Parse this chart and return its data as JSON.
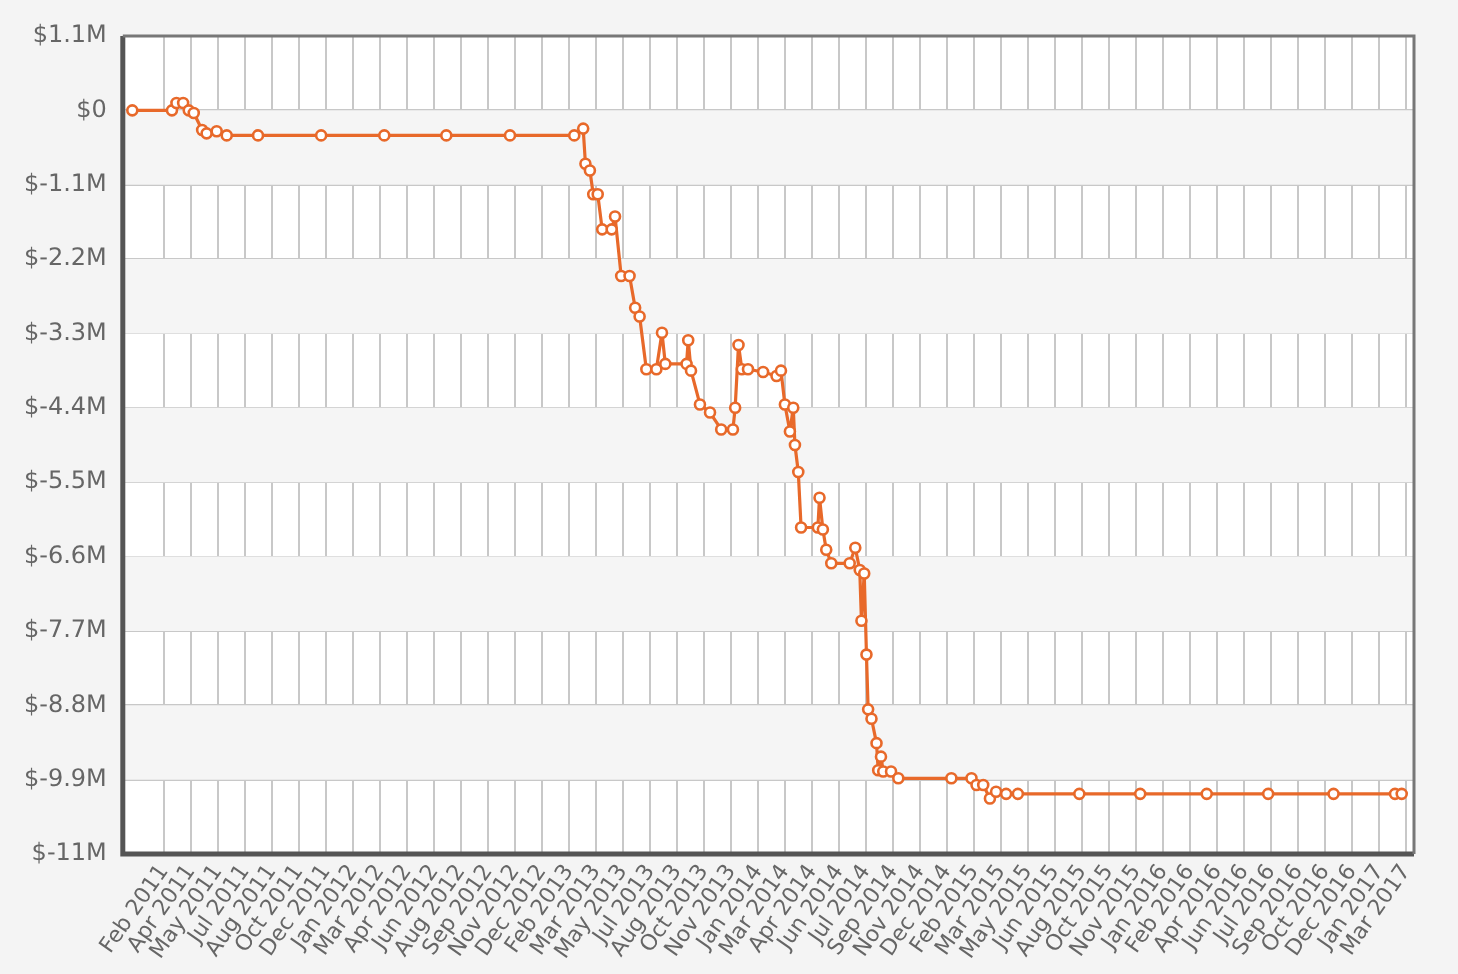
{
  "chart_data": {
    "type": "line",
    "x": [
      "2010-12-22",
      "2011-03-03",
      "2011-03-11",
      "2011-03-23",
      "2011-04-02",
      "2011-04-11",
      "2011-04-26",
      "2011-05-04",
      "2011-05-22",
      "2011-06-09",
      "2011-08-04",
      "2011-11-25",
      "2012-03-17",
      "2012-07-06",
      "2012-10-28",
      "2013-02-20",
      "2013-03-08",
      "2013-03-12",
      "2013-03-20",
      "2013-03-26",
      "2013-04-03",
      "2013-04-11",
      "2013-04-28",
      "2013-05-04",
      "2013-05-15",
      "2013-05-30",
      "2013-06-09",
      "2013-06-17",
      "2013-06-29",
      "2013-07-17",
      "2013-07-27",
      "2013-08-02",
      "2013-09-09",
      "2013-09-12",
      "2013-09-17",
      "2013-10-03",
      "2013-10-21",
      "2013-11-10",
      "2013-12-01",
      "2013-12-05",
      "2013-12-11",
      "2013-12-17",
      "2013-12-28",
      "2014-01-24",
      "2014-02-17",
      "2014-02-25",
      "2014-03-04",
      "2014-03-13",
      "2014-03-19",
      "2014-03-22",
      "2014-03-28",
      "2014-04-02",
      "2014-05-02",
      "2014-05-05",
      "2014-05-11",
      "2014-05-17",
      "2014-05-26",
      "2014-06-28",
      "2014-07-08",
      "2014-07-16",
      "2014-07-19",
      "2014-07-24",
      "2014-07-28",
      "2014-07-31",
      "2014-08-06",
      "2014-08-15",
      "2014-08-18",
      "2014-08-23",
      "2014-08-27",
      "2014-09-10",
      "2014-09-23",
      "2014-12-27",
      "2015-02-01",
      "2015-02-10",
      "2015-02-22",
      "2015-03-06",
      "2015-03-17",
      "2015-04-04",
      "2015-04-25",
      "2015-08-13",
      "2015-11-30",
      "2016-03-28",
      "2016-07-16",
      "2016-11-10",
      "2017-02-28",
      "2017-03-12"
    ],
    "series": [
      {
        "color": "#e8692a",
        "values": [
          0,
          0,
          110000,
          110000,
          0,
          -40000,
          -290000,
          -340000,
          -310000,
          -370000,
          -370000,
          -370000,
          -370000,
          -370000,
          -370000,
          -370000,
          -270000,
          -790000,
          -890000,
          -1240000,
          -1240000,
          -1760000,
          -1760000,
          -1570000,
          -2450000,
          -2450000,
          -2920000,
          -3050000,
          -3830000,
          -3830000,
          -3290000,
          -3750000,
          -3750000,
          -3400000,
          -3850000,
          -4350000,
          -4470000,
          -4720000,
          -4720000,
          -4400000,
          -3470000,
          -3830000,
          -3830000,
          -3870000,
          -3930000,
          -3850000,
          -4350000,
          -4750000,
          -4400000,
          -4950000,
          -5350000,
          -6170000,
          -6170000,
          -5730000,
          -6200000,
          -6500000,
          -6700000,
          -6700000,
          -6470000,
          -6800000,
          -7550000,
          -6850000,
          -8050000,
          -8860000,
          -9000000,
          -9360000,
          -9760000,
          -9560000,
          -9780000,
          -9780000,
          -9880000,
          -9880000,
          -9880000,
          -9980000,
          -9980000,
          -10180000,
          -10080000,
          -10110000,
          -10110000,
          -10110000,
          -10110000,
          -10110000,
          -10110000,
          -10110000,
          -10110000,
          -10110000
        ]
      }
    ],
    "xlim": [
      "2010-12-05",
      "2017-04-03"
    ],
    "xticks": [
      {
        "value": "2011-02-17",
        "label": "Feb 2011"
      },
      {
        "value": "2011-04-06",
        "label": "Apr 2011"
      },
      {
        "value": "2011-05-24",
        "label": "May 2011"
      },
      {
        "value": "2011-07-12",
        "label": "Jul 2011"
      },
      {
        "value": "2011-08-29",
        "label": "Aug 2011"
      },
      {
        "value": "2011-10-16",
        "label": "Oct 2011"
      },
      {
        "value": "2011-12-04",
        "label": "Dec 2011"
      },
      {
        "value": "2012-01-21",
        "label": "Jan 2012"
      },
      {
        "value": "2012-03-09",
        "label": "Mar 2012"
      },
      {
        "value": "2012-04-27",
        "label": "Apr 2012"
      },
      {
        "value": "2012-06-14",
        "label": "Jun 2012"
      },
      {
        "value": "2012-08-01",
        "label": "Aug 2012"
      },
      {
        "value": "2012-09-19",
        "label": "Sep 2012"
      },
      {
        "value": "2012-11-06",
        "label": "Nov 2012"
      },
      {
        "value": "2012-12-24",
        "label": "Dec 2012"
      },
      {
        "value": "2013-02-11",
        "label": "Feb 2013"
      },
      {
        "value": "2013-03-31",
        "label": "Mar 2013"
      },
      {
        "value": "2013-05-18",
        "label": "May 2013"
      },
      {
        "value": "2013-07-06",
        "label": "Jul 2013"
      },
      {
        "value": "2013-08-23",
        "label": "Aug 2013"
      },
      {
        "value": "2013-10-10",
        "label": "Oct 2013"
      },
      {
        "value": "2013-11-28",
        "label": "Nov 2013"
      },
      {
        "value": "2014-01-15",
        "label": "Jan 2014"
      },
      {
        "value": "2014-03-04",
        "label": "Mar 2014"
      },
      {
        "value": "2014-04-22",
        "label": "Apr 2014"
      },
      {
        "value": "2014-06-09",
        "label": "Jun 2014"
      },
      {
        "value": "2014-07-27",
        "label": "Jul 2014"
      },
      {
        "value": "2014-09-14",
        "label": "Sep 2014"
      },
      {
        "value": "2014-11-01",
        "label": "Nov 2014"
      },
      {
        "value": "2014-12-19",
        "label": "Dec 2014"
      },
      {
        "value": "2015-02-06",
        "label": "Feb 2015"
      },
      {
        "value": "2015-03-26",
        "label": "Mar 2015"
      },
      {
        "value": "2015-05-13",
        "label": "May 2015"
      },
      {
        "value": "2015-06-30",
        "label": "Jun 2015"
      },
      {
        "value": "2015-08-18",
        "label": "Aug 2015"
      },
      {
        "value": "2015-10-05",
        "label": "Oct 2015"
      },
      {
        "value": "2015-11-23",
        "label": "Nov 2015"
      },
      {
        "value": "2016-01-10",
        "label": "Jan 2016"
      },
      {
        "value": "2016-02-27",
        "label": "Feb 2016"
      },
      {
        "value": "2016-04-16",
        "label": "Apr 2016"
      },
      {
        "value": "2016-06-03",
        "label": "Jun 2016"
      },
      {
        "value": "2016-07-21",
        "label": "Jul 2016"
      },
      {
        "value": "2016-09-08",
        "label": "Sep 2016"
      },
      {
        "value": "2016-10-26",
        "label": "Oct 2016"
      },
      {
        "value": "2016-12-13",
        "label": "Dec 2016"
      },
      {
        "value": "2017-01-31",
        "label": "Jan 2017"
      },
      {
        "value": "2017-03-20",
        "label": "Mar 2017"
      }
    ],
    "ylim": [
      -11000000,
      1100000
    ],
    "yticks": [
      {
        "value": 1100000,
        "label": "$1.1M"
      },
      {
        "value": 0,
        "label": "$0"
      },
      {
        "value": -1100000,
        "label": "$-1.1M"
      },
      {
        "value": -2200000,
        "label": "$-2.2M"
      },
      {
        "value": -3300000,
        "label": "$-3.3M"
      },
      {
        "value": -4400000,
        "label": "$-4.4M"
      },
      {
        "value": -5500000,
        "label": "$-5.5M"
      },
      {
        "value": -6600000,
        "label": "$-6.6M"
      },
      {
        "value": -7700000,
        "label": "$-7.7M"
      },
      {
        "value": -8800000,
        "label": "$-8.8M"
      },
      {
        "value": -9900000,
        "label": "$-9.9M"
      },
      {
        "value": -11000000,
        "label": "$-11M"
      }
    ],
    "grid": true,
    "legend": false,
    "marker": "circle",
    "line_style": "solid"
  }
}
